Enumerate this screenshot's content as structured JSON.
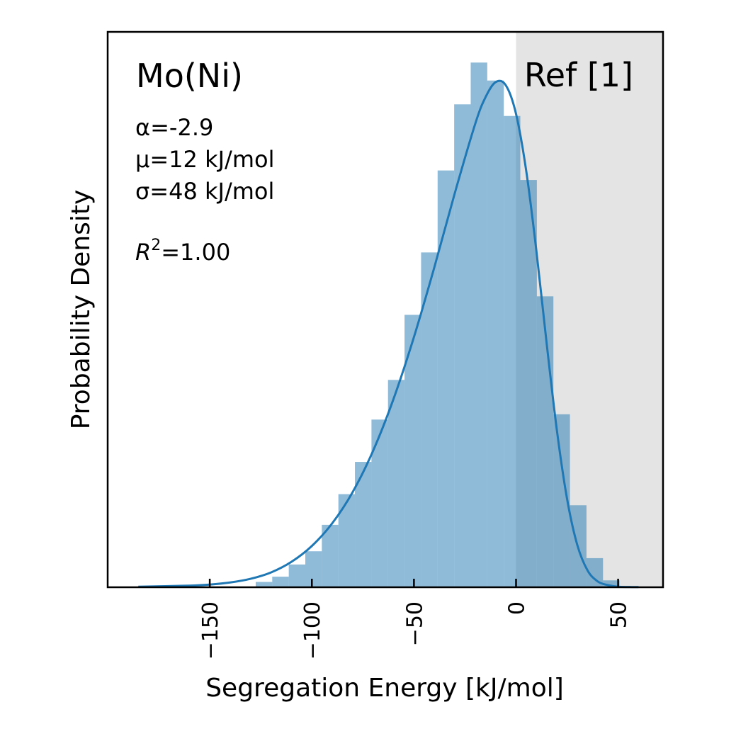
{
  "chart_data": {
    "type": "bar",
    "title": "Mo(Ni)",
    "xlabel": "Segregation Energy [kJ/mol]",
    "ylabel": "Probability Density",
    "xlim": [
      -200,
      72
    ],
    "ylim": [
      0,
      1.05
    ],
    "xticks": [
      -150,
      -100,
      -50,
      0,
      50
    ],
    "xtick_labels": [
      "−150",
      "−100",
      "−50",
      "0",
      "50"
    ],
    "grid": false,
    "ref_region": {
      "label": "Ref [1]",
      "x_start": 0,
      "color": "#e4e4e4"
    },
    "histogram": {
      "bin_width": 8.1,
      "bars": [
        {
          "x0": -127.5,
          "value": 0.01
        },
        {
          "x0": -119.4,
          "value": 0.02
        },
        {
          "x0": -111.3,
          "value": 0.043
        },
        {
          "x0": -103.2,
          "value": 0.068
        },
        {
          "x0": -95.1,
          "value": 0.118
        },
        {
          "x0": -87.0,
          "value": 0.176
        },
        {
          "x0": -78.9,
          "value": 0.237
        },
        {
          "x0": -70.8,
          "value": 0.317
        },
        {
          "x0": -62.7,
          "value": 0.392
        },
        {
          "x0": -54.6,
          "value": 0.515
        },
        {
          "x0": -46.5,
          "value": 0.633
        },
        {
          "x0": -38.4,
          "value": 0.788
        },
        {
          "x0": -30.3,
          "value": 0.913
        },
        {
          "x0": -22.2,
          "value": 0.992
        },
        {
          "x0": -14.1,
          "value": 0.958
        },
        {
          "x0": -6.0,
          "value": 0.891
        },
        {
          "x0": 2.1,
          "value": 0.77
        },
        {
          "x0": 10.2,
          "value": 0.55
        },
        {
          "x0": 18.3,
          "value": 0.327
        },
        {
          "x0": 26.4,
          "value": 0.155
        },
        {
          "x0": 34.5,
          "value": 0.055
        },
        {
          "x0": 42.6,
          "value": 0.013
        }
      ],
      "color": "#1f77b4",
      "alpha": 0.5
    },
    "fit_curve": {
      "color": "#1f77b4",
      "x": [
        -185,
        -160,
        -150,
        -140,
        -130,
        -120,
        -110,
        -100,
        -90,
        -80,
        -70,
        -60,
        -50,
        -40,
        -30,
        -20,
        -15,
        -10,
        -5,
        0,
        5,
        10,
        15,
        20,
        25,
        30,
        35,
        40,
        45,
        50,
        55,
        60
      ],
      "y": [
        0.001,
        0.003,
        0.005,
        0.009,
        0.016,
        0.028,
        0.048,
        0.078,
        0.121,
        0.18,
        0.258,
        0.356,
        0.473,
        0.605,
        0.745,
        0.876,
        0.926,
        0.955,
        0.949,
        0.895,
        0.787,
        0.635,
        0.461,
        0.297,
        0.167,
        0.08,
        0.032,
        0.011,
        0.004,
        0.001,
        0.0005,
        0.0003
      ]
    },
    "annotations": {
      "alpha": "α=-2.9",
      "mu": "μ=12 kJ/mol",
      "sigma": "σ=48 kJ/mol",
      "r2_symbol": "R",
      "r2_exp": "2",
      "r2_value": "=1.00"
    }
  }
}
